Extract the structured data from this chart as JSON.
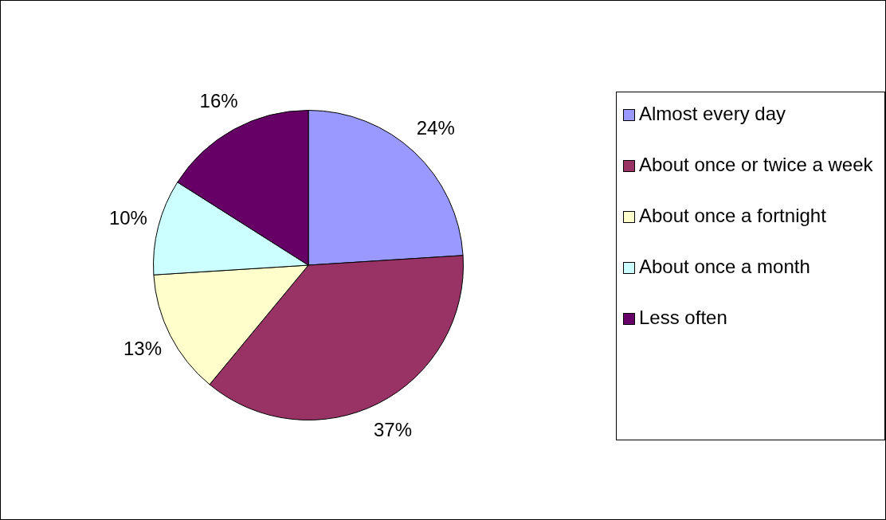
{
  "chart_data": {
    "type": "pie",
    "categories": [
      "Almost every day",
      "About once or twice a week",
      "About once a fortnight",
      "About once a month",
      "Less often"
    ],
    "values": [
      24,
      37,
      13,
      10,
      16
    ],
    "value_labels": [
      "24%",
      "37%",
      "13%",
      "10%",
      "16%"
    ],
    "colors": [
      "#9999ff",
      "#993366",
      "#ffffcc",
      "#ccffff",
      "#660066"
    ],
    "legend": "right"
  }
}
